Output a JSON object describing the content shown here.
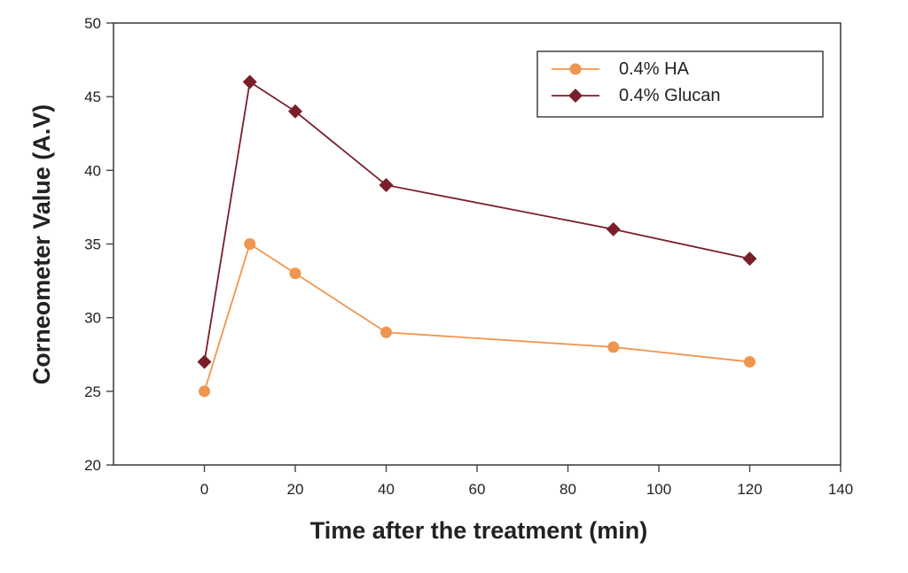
{
  "chart_data": {
    "type": "line",
    "title": "",
    "xlabel": "Time after the treatment (min)",
    "ylabel": "Corneometer Value (A.V)",
    "xlim": [
      -20,
      140
    ],
    "ylim": [
      20,
      50
    ],
    "xticks": [
      0,
      20,
      40,
      60,
      80,
      100,
      120,
      140
    ],
    "yticks": [
      20,
      25,
      30,
      35,
      40,
      45,
      50
    ],
    "grid": false,
    "legend_position": "top-right",
    "series": [
      {
        "name": "0.4% HA",
        "marker": "circle",
        "color": "#f0954f",
        "x": [
          0,
          10,
          20,
          40,
          90,
          120
        ],
        "y": [
          25,
          35,
          33,
          29,
          28,
          27
        ]
      },
      {
        "name": "0.4% Glucan",
        "marker": "diamond",
        "color": "#7a1f2a",
        "x": [
          0,
          10,
          20,
          40,
          90,
          120
        ],
        "y": [
          27,
          46,
          44,
          39,
          36,
          34
        ]
      }
    ]
  }
}
